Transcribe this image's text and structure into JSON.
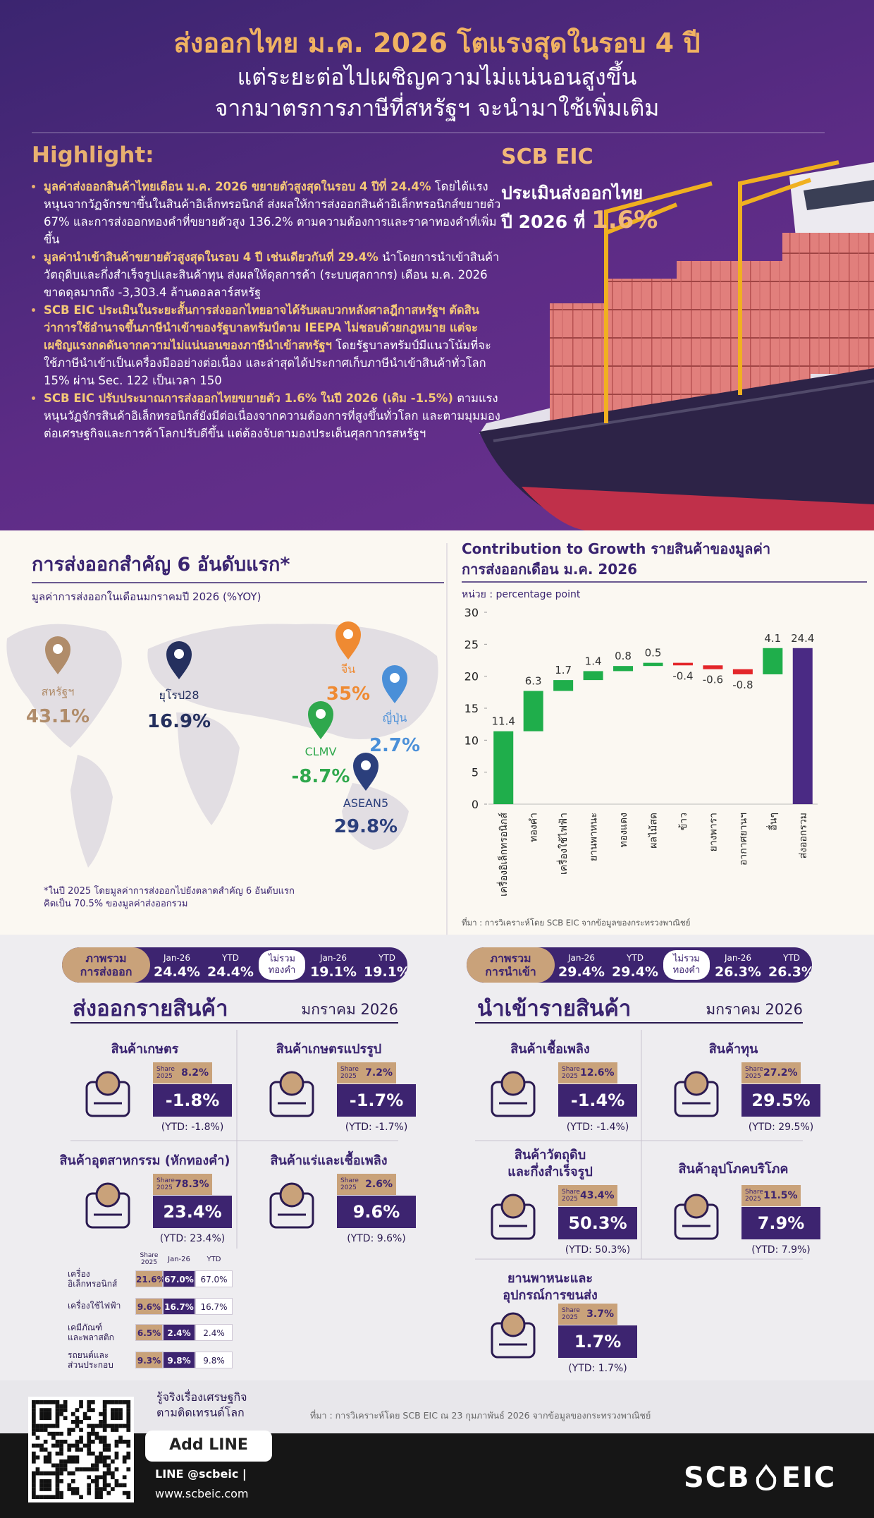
{
  "header": {
    "title": "ส่งออกไทย ม.ค. 2026 โตแรงสุดในรอบ 4 ปี",
    "subtitle": [
      "แต่ระยะต่อไปเผชิญความไม่แน่นอนสูงขึ้น",
      "จากมาตรการภาษีที่สหรัฐฯ จะนำมาใช้เพิ่มเติม"
    ]
  },
  "highlight": {
    "heading": "Highlight:",
    "items": [
      {
        "lead": "มูลค่าส่งออกสินค้าไทยเดือน ม.ค. 2026 ขยายตัวสูงสุดในรอบ 4 ปีที่ 24.4%",
        "body": "โดยได้แรงหนุนจากวัฏจักรขาขึ้นในสินค้าอิเล็กทรอนิกส์ ส่งผลให้การส่งออกสินค้าอิเล็กทรอนิกส์ขยายตัว 67% และการส่งออกทองคำที่ขยายตัวสูง 136.2% ตามความต้องการและราคาทองคำที่เพิ่มขึ้น"
      },
      {
        "lead": "มูลค่านำเข้าสินค้าขยายตัวสูงสุดในรอบ 4 ปี เช่นเดียวกันที่ 29.4%",
        "body": "นำโดยการนำเข้าสินค้าวัตถุดิบและกึ่งสำเร็จรูปและสินค้าทุน ส่งผลให้ดุลการค้า (ระบบศุลกากร) เดือน ม.ค. 2026 ขาดดุลมากถึง -3,303.4 ล้านดอลลาร์สหรัฐ"
      },
      {
        "lead": "SCB EIC ประเมินในระยะสั้นการส่งออกไทยอาจได้รับผลบวกหลังศาลฎีกาสหรัฐฯ ตัดสินว่าการใช้อำนาจขึ้นภาษีนำเข้าของรัฐบาลทรัมป์ตาม IEEPA ไม่ชอบด้วยกฎหมาย แต่จะเผชิญแรงกดดันจากความไม่แน่นอนของภาษีนำเข้าสหรัฐฯ",
        "body": "โดยรัฐบาลทรัมป์มีแนวโน้มที่จะใช้ภาษีนำเข้าเป็นเครื่องมืออย่างต่อเนื่อง และล่าสุดได้ประกาศเก็บภาษีนำเข้าสินค้าทั่วโลก 15% ผ่าน Sec. 122 เป็นเวลา 150"
      },
      {
        "lead": "SCB EIC ปรับประมาณการส่งออกไทยขยายตัว 1.6% ในปี 2026 (เดิม -1.5%)",
        "body": "ตามแรงหนุนวัฏจักรสินค้าอิเล็กทรอนิกส์ยังมีต่อเนื่องจากความต้องการที่สูงขึ้นทั่วโลก และตามมุมมองต่อเศรษฐกิจและการค้าโลกปรับดีขึ้น แต่ต้องจับตามองประเด็นศุลกากรสหรัฐฯ"
      }
    ]
  },
  "forecast": {
    "org": "SCB EIC",
    "line1": "ประเมินส่งออกไทย",
    "line2": "ปี 2026 ที่",
    "value": "1.6%"
  },
  "markets": {
    "title": "การส่งออกสำคัญ 6 อันดับแรก*",
    "subtitle": "มูลค่าการส่งออกในเดือนมกราคมปี 2026 (%YOY)",
    "items": [
      {
        "name": "สหรัฐฯ",
        "value": "43.1%",
        "color": "#b08c6a"
      },
      {
        "name": "ยุโรป28",
        "value": "16.9%",
        "color": "#25305e"
      },
      {
        "name": "จีน",
        "value": "35%",
        "color": "#ef8a32"
      },
      {
        "name": "ญี่ปุ่น",
        "value": "2.7%",
        "color": "#4a8fd8"
      },
      {
        "name": "CLMV",
        "value": "-8.7%",
        "color": "#2fa84d"
      },
      {
        "name": "ASEAN5",
        "value": "29.8%",
        "color": "#2b3f7c"
      }
    ],
    "note": [
      "*ในปี 2025 โดยมูลค่าการส่งออกไปยังตลาดสำคัญ 6 อันดับแรก",
      "คิดเป็น 70.5% ของมูลค่าส่งออกรวม"
    ]
  },
  "chart_data": {
    "type": "waterfall",
    "title": [
      "Contribution to Growth รายสินค้าของมูลค่า",
      "การส่งออกเดือน ม.ค. 2026"
    ],
    "unit": "หน่วย : percentage point",
    "categories": [
      "เครื่องอิเล็กทรอนิกส์",
      "ทองคำ",
      "เครื่องใช้ไฟฟ้า",
      "ยานพาหนะ",
      "ทองแดง",
      "ผลไม้สด",
      "ข้าว",
      "ยางพารา",
      "อากาศยานฯ",
      "อื่นๆ",
      "ส่งออกรวม"
    ],
    "values": [
      11.4,
      6.3,
      1.7,
      1.4,
      0.8,
      0.5,
      -0.4,
      -0.6,
      -0.8,
      4.1,
      24.4
    ],
    "last_is_total": true,
    "colors": {
      "up": "#1fae4b",
      "down": "#e3262a",
      "total": "#4a2a84"
    },
    "ylim": [
      0,
      30
    ],
    "yticks": [
      0,
      5,
      10,
      15,
      20,
      25,
      30
    ],
    "grid": false,
    "source": "ที่มา : การวิเคราะห์โดย SCB EIC จากข้อมูลของกระทรวงพาณิชย์"
  },
  "exports": {
    "summary": {
      "label": [
        "ภาพรวม",
        "การส่งออก"
      ],
      "jan_label": "Jan-26",
      "ytd_label": "YTD",
      "jan": "24.4%",
      "ytd": "24.4%",
      "ex_gold_label": [
        "ไม่รวม",
        "ทองคำ"
      ],
      "ex_gold_jan": "19.1%",
      "ex_gold_ytd": "19.1%"
    },
    "heading": "ส่งออกรายสินค้า",
    "month": "มกราคม 2026",
    "share_label": [
      "Share",
      "2025"
    ],
    "categories": [
      {
        "title": [
          "สินค้าเกษตร"
        ],
        "share": "8.2%",
        "value": "-1.8%",
        "ytd": "(YTD: -1.8%)"
      },
      {
        "title": [
          "สินค้าเกษตรแปรรูป"
        ],
        "share": "7.2%",
        "value": "-1.7%",
        "ytd": "(YTD: -1.7%)"
      },
      {
        "title": [
          "สินค้าอุตสาหกรรม (หักทองคำ)"
        ],
        "share": "78.3%",
        "value": "23.4%",
        "ytd": "(YTD: 23.4%)"
      },
      {
        "title": [
          "สินค้าแร่และเชื้อเพลิง"
        ],
        "share": "2.6%",
        "value": "9.6%",
        "ytd": "(YTD: 9.6%)"
      }
    ],
    "table": [
      {
        "label": [
          "เครื่อง",
          "อิเล็กทรอนิกส์"
        ],
        "cells": [
          "21.6%",
          "67.0%",
          "67.0%"
        ]
      },
      {
        "label": [
          "เครื่องใช้ไฟฟ้า"
        ],
        "cells": [
          "9.6%",
          "16.7%",
          "16.7%"
        ]
      },
      {
        "label": [
          "เคมีภัณฑ์",
          "และพลาสติก"
        ],
        "cells": [
          "6.5%",
          "2.4%",
          "2.4%"
        ]
      },
      {
        "label": [
          "รถยนต์และ",
          "ส่วนประกอบ"
        ],
        "cells": [
          "9.3%",
          "9.8%",
          "9.8%"
        ]
      }
    ]
  },
  "imports": {
    "summary": {
      "label": [
        "ภาพรวม",
        "การนำเข้า"
      ],
      "jan_label": "Jan-26",
      "ytd_label": "YTD",
      "jan": "29.4%",
      "ytd": "29.4%",
      "ex_gold_label": [
        "ไม่รวม",
        "ทองคำ"
      ],
      "ex_gold_jan": "26.3%",
      "ex_gold_ytd": "26.3%"
    },
    "heading": "นำเข้ารายสินค้า",
    "month": "มกราคม 2026",
    "share_label": [
      "Share",
      "2025"
    ],
    "categories": [
      {
        "title": [
          "สินค้าเชื้อเพลิง"
        ],
        "share": "12.6%",
        "value": "-1.4%",
        "ytd": "(YTD: -1.4%)"
      },
      {
        "title": [
          "สินค้าทุน"
        ],
        "share": "27.2%",
        "value": "29.5%",
        "ytd": "(YTD: 29.5%)"
      },
      {
        "title": [
          "สินค้าวัตถุดิบ",
          "และกึ่งสำเร็จรูป"
        ],
        "share": "43.4%",
        "value": "50.3%",
        "ytd": "(YTD: 50.3%)"
      },
      {
        "title": [
          "สินค้าอุปโภคบริโภค"
        ],
        "share": "11.5%",
        "value": "7.9%",
        "ytd": "(YTD: 7.9%)"
      },
      {
        "title": [
          "ยานพาหนะและ",
          "อุปกรณ์การขนส่ง"
        ],
        "share": "3.7%",
        "value": "1.7%",
        "ytd": "(YTD: 1.7%)"
      }
    ]
  },
  "footer": {
    "slogan": [
      "รู้จริงเรื่องเศรษฐกิจ",
      "ตามติดเทรนด์โลก"
    ],
    "add_line": "Add LINE",
    "line_id": "LINE @scbeic |",
    "website": "www.scbeic.com",
    "source": "ที่มา : การวิเคราะห์โดย SCB EIC ณ 23 กุมภาพันธ์ 2026 จากข้อมูลของกระทรวงพาณิชย์",
    "logo": [
      "SCB",
      "EIC"
    ]
  }
}
